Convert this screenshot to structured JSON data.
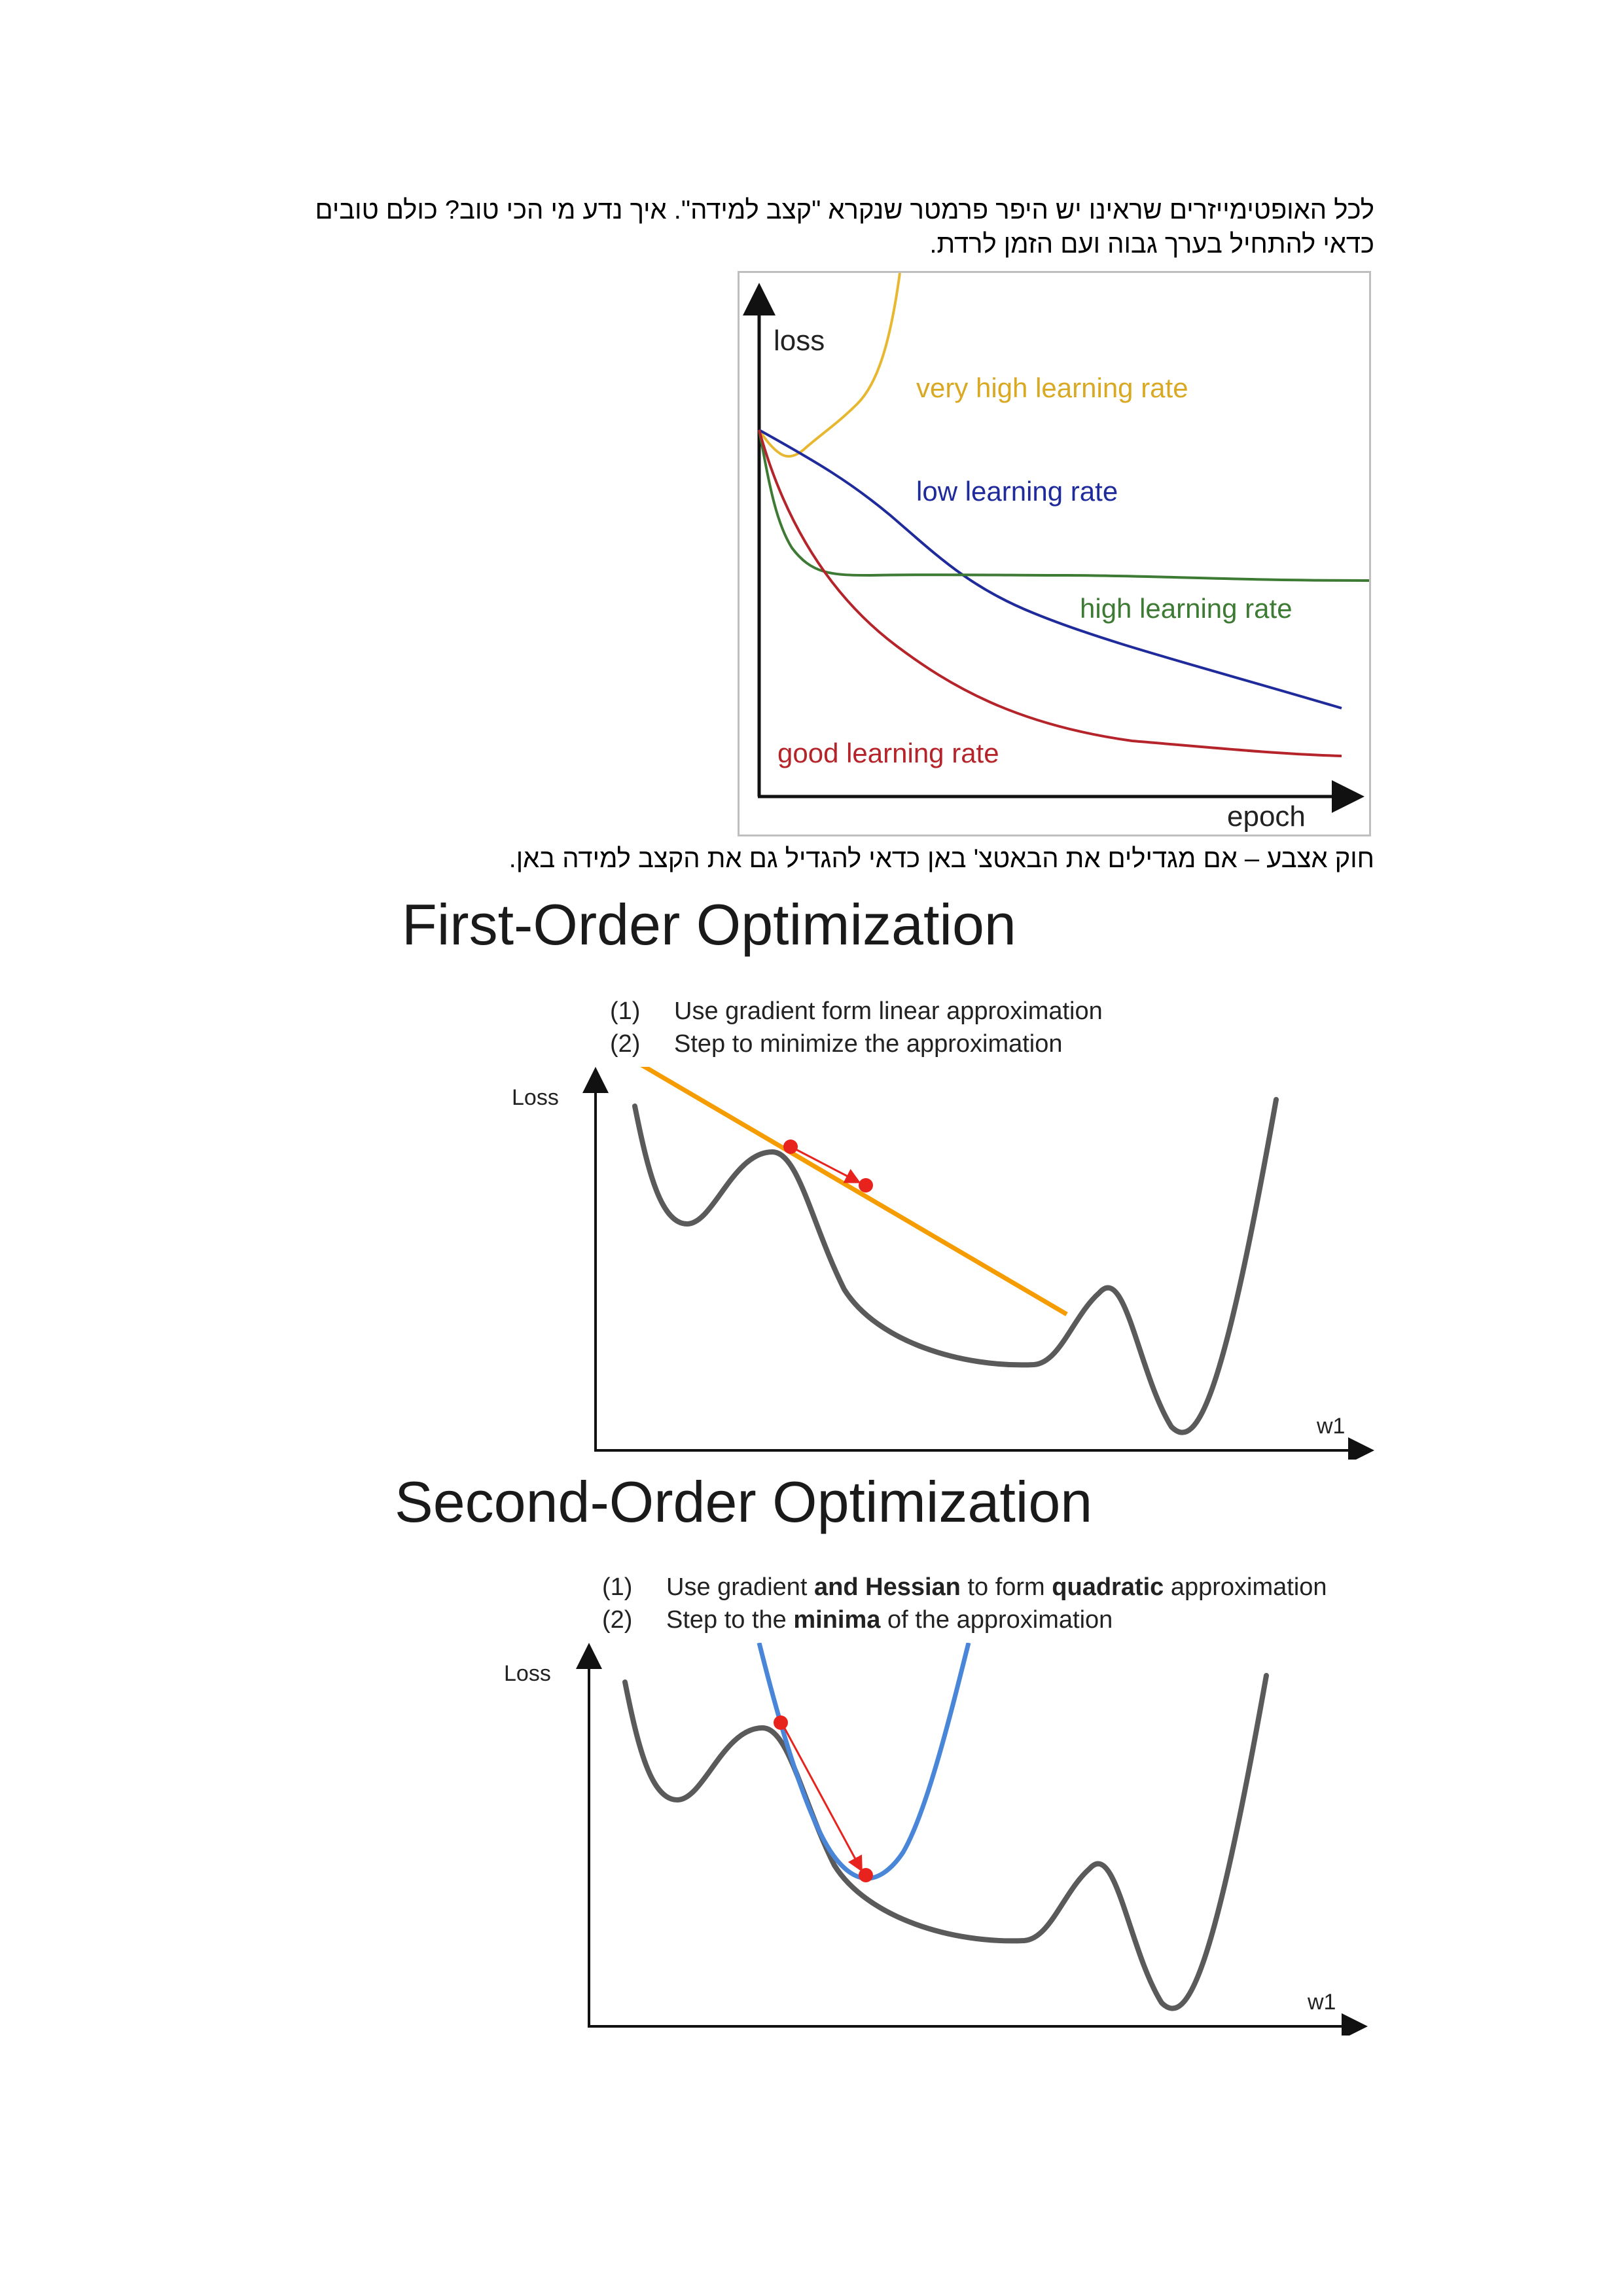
{
  "paragraphs": {
    "intro": "לכל האופטימייזרים שראינו יש היפר פרמטר שנקרא \"קצב למידה\". איך נדע מי הכי טוב? כולם טובים כדאי להתחיל בערך גבוה ועם הזמן לרדת.",
    "rule": "חוק אצבע – אם מגדילים את הבאטצ' באן כדאי להגדיל גם את הקצב למידה באן."
  },
  "lr_chart": {
    "y_label": "loss",
    "x_label": "epoch",
    "curves": [
      {
        "name": "very high learning rate",
        "color": "#e8b730"
      },
      {
        "name": "low learning rate",
        "color": "#1f2a9b"
      },
      {
        "name": "high learning rate",
        "color": "#3d7a33"
      },
      {
        "name": "good learning rate",
        "color": "#b5242a"
      }
    ]
  },
  "first_order": {
    "title": "First-Order Optimization",
    "steps": [
      {
        "num": "(1)",
        "text": "Use gradient form linear approximation"
      },
      {
        "num": "(2)",
        "text": "Step to minimize the approximation"
      }
    ],
    "y_label": "Loss",
    "x_label": "w1",
    "colors": {
      "loss_curve": "#5a5a5a",
      "approximation": "#f59c00",
      "step": "#e8231d"
    }
  },
  "second_order": {
    "title": "Second-Order Optimization",
    "steps": [
      {
        "num": "(1)",
        "parts": [
          {
            "text": "Use gradient ",
            "bold": false
          },
          {
            "text": "and Hessian",
            "bold": true
          },
          {
            "text": " to form ",
            "bold": false
          },
          {
            "text": "quadratic",
            "bold": true
          },
          {
            "text": " approximation",
            "bold": false
          }
        ]
      },
      {
        "num": "(2)",
        "parts": [
          {
            "text": "Step to the ",
            "bold": false
          },
          {
            "text": "minima",
            "bold": true
          },
          {
            "text": " of the approximation",
            "bold": false
          }
        ]
      }
    ],
    "y_label": "Loss",
    "x_label": "w1",
    "colors": {
      "loss_curve": "#5a5a5a",
      "approximation": "#4a86d8",
      "step": "#e8231d"
    }
  }
}
